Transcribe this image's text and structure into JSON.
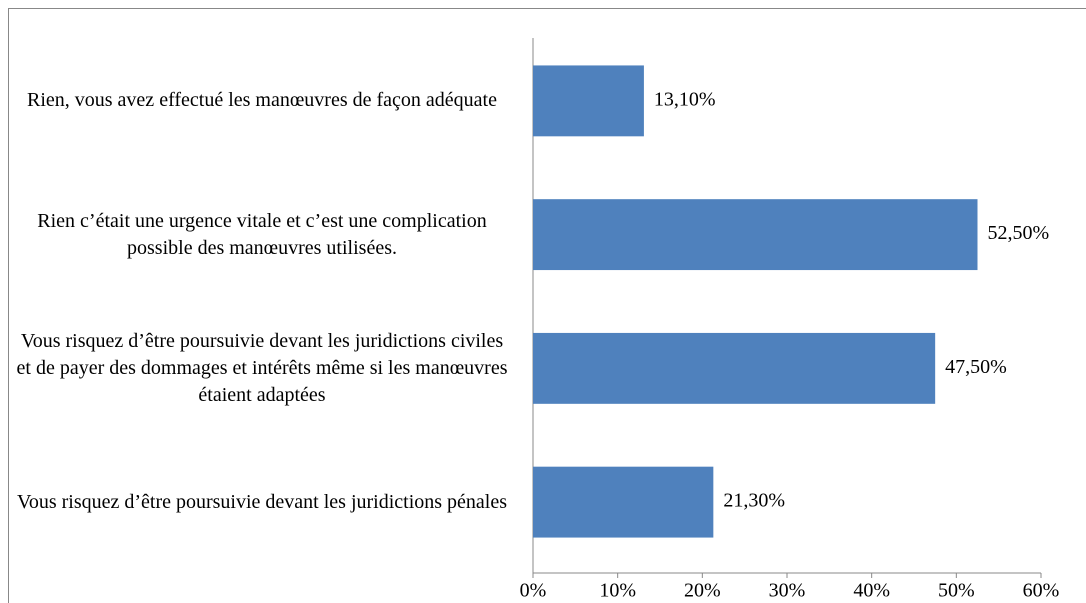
{
  "chart_data": {
    "type": "bar",
    "orientation": "horizontal",
    "categories": [
      "Rien, vous avez effectué les manœuvres de façon adéquate",
      "Rien c’était une urgence vitale et c’est une complication possible des manœuvres utilisées.",
      "Vous risquez d’être poursuivie devant les juridictions civiles et de payer des dommages et intérêts même si les manœuvres étaient adaptées",
      "Vous risquez d’être poursuivie devant les juridictions pénales"
    ],
    "values": [
      13.1,
      52.5,
      47.5,
      21.3
    ],
    "value_labels": [
      "13,10%",
      "52,50%",
      "47,50%",
      "21,30%"
    ],
    "color": "#4f81bd",
    "xlim": [
      0,
      60
    ],
    "xticks": [
      {
        "value": 0,
        "label": "0%"
      },
      {
        "value": 10,
        "label": "10%"
      },
      {
        "value": 20,
        "label": "20%"
      },
      {
        "value": 30,
        "label": "30%"
      },
      {
        "value": 40,
        "label": "40%"
      },
      {
        "value": 50,
        "label": "50%"
      },
      {
        "value": 60,
        "label": "60%"
      }
    ],
    "grid": false
  }
}
